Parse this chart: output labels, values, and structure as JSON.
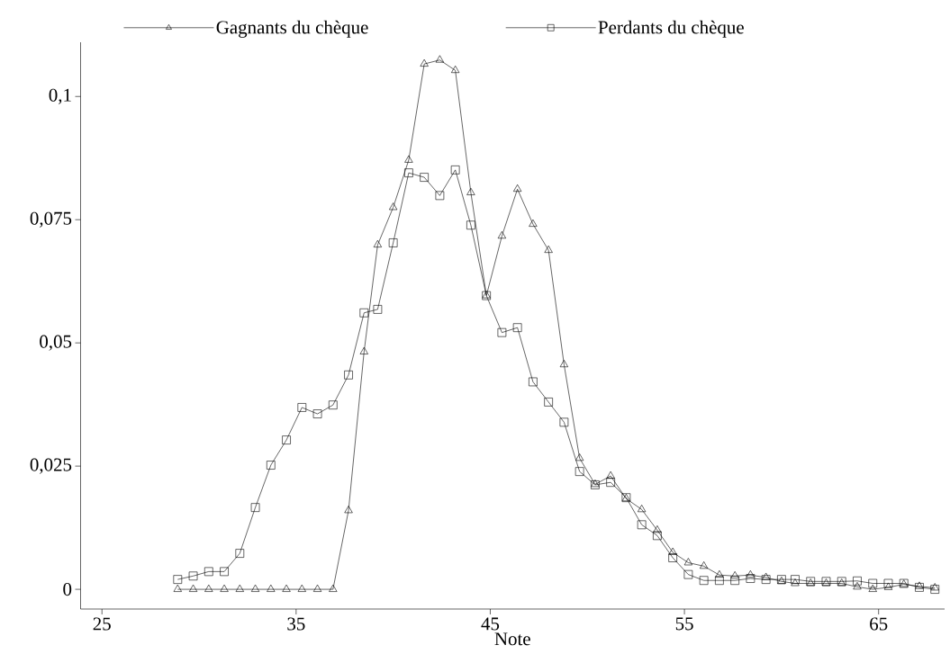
{
  "chart_data": {
    "type": "line",
    "xlabel": "Note",
    "legend": "top",
    "xlim": [
      23.9,
      68.4
    ],
    "ylim": [
      -0.004,
      0.111
    ],
    "xticks": [
      25,
      35,
      45,
      55,
      65
    ],
    "yticks": [
      {
        "value": 0,
        "label": "0"
      },
      {
        "value": 0.025,
        "label": "0,025"
      },
      {
        "value": 0.05,
        "label": "0,05"
      },
      {
        "value": 0.075,
        "label": "0,075"
      },
      {
        "value": 0.1,
        "label": "0,1"
      }
    ],
    "x": [
      28.9,
      29.7,
      30.5,
      31.3,
      32.1,
      32.9,
      33.7,
      34.5,
      35.3,
      36.1,
      36.9,
      37.7,
      38.5,
      39.2,
      40.0,
      40.8,
      41.6,
      42.4,
      43.2,
      44.0,
      44.8,
      45.6,
      46.4,
      47.2,
      48.0,
      48.8,
      49.6,
      50.4,
      51.2,
      52.0,
      52.8,
      53.6,
      54.4,
      55.2,
      56.0,
      56.8,
      57.6,
      58.4,
      59.2,
      60.0,
      60.7,
      61.5,
      62.3,
      63.1,
      63.9,
      64.7,
      65.5,
      66.3,
      67.1,
      67.9
    ],
    "series": [
      {
        "name": "Gagnants du chèque",
        "color": "#000000",
        "marker": "triangle",
        "values": [
          0,
          0,
          0,
          0,
          0,
          0,
          0,
          0,
          0,
          0,
          0,
          0.016,
          0.0482,
          0.0699,
          0.0775,
          0.0871,
          0.1066,
          0.1074,
          0.1053,
          0.0805,
          0.0596,
          0.0717,
          0.0812,
          0.0741,
          0.0688,
          0.0456,
          0.0266,
          0.0213,
          0.023,
          0.0184,
          0.0162,
          0.012,
          0.0075,
          0.0054,
          0.0047,
          0.0029,
          0.0027,
          0.0029,
          0.0024,
          0.0016,
          0.0012,
          0.0012,
          0.0012,
          0.0012,
          0.0005,
          0.0,
          0.0004,
          0.001,
          0.0006,
          0.0003
        ]
      },
      {
        "name": "Perdants du chèque",
        "color": "#000000",
        "marker": "square",
        "values": [
          0.002,
          0.0027,
          0.0036,
          0.0036,
          0.0073,
          0.0166,
          0.0252,
          0.0303,
          0.0369,
          0.0356,
          0.0374,
          0.0435,
          0.0561,
          0.0568,
          0.0703,
          0.0845,
          0.0836,
          0.0799,
          0.0851,
          0.0739,
          0.0596,
          0.0521,
          0.0531,
          0.0421,
          0.038,
          0.0339,
          0.0239,
          0.0212,
          0.0217,
          0.0186,
          0.0131,
          0.0109,
          0.0064,
          0.003,
          0.0018,
          0.0018,
          0.0018,
          0.0022,
          0.002,
          0.002,
          0.002,
          0.0016,
          0.0016,
          0.0016,
          0.0017,
          0.0012,
          0.0012,
          0.0012,
          0.0004,
          0.0
        ]
      }
    ]
  }
}
